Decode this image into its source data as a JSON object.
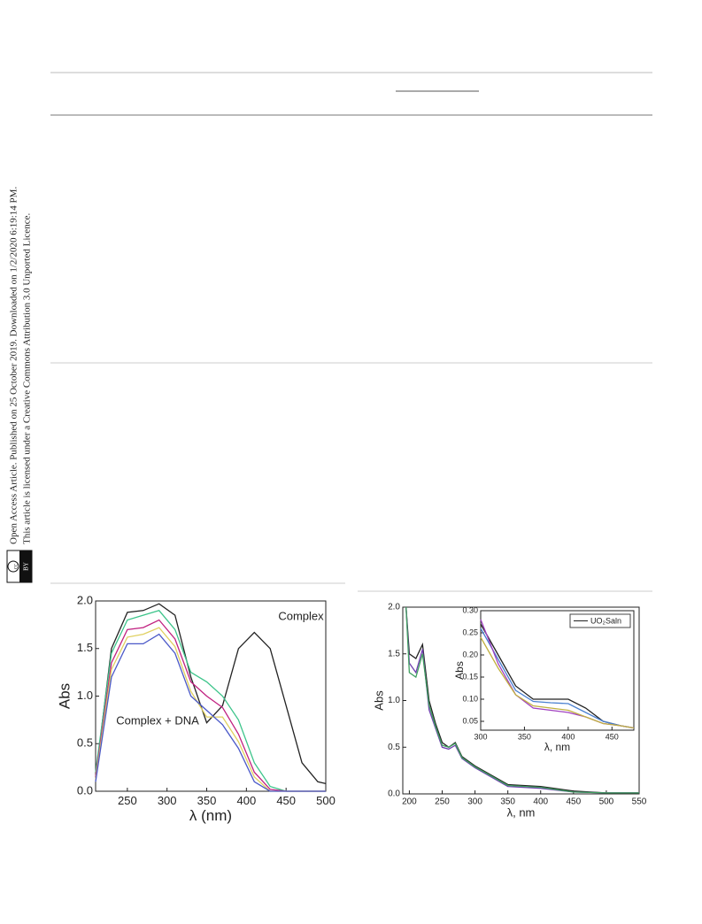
{
  "license": {
    "line1": "Open Access Article. Published on 25 October 2019. Downloaded on 1/2/2020 6:19:14 PM.",
    "line2": "This article is licensed under a Creative Commons Attribution 3.0 Unported Licence.",
    "cc_icon": "cc",
    "badge": "BY"
  },
  "charts": [
    {
      "type": "line",
      "xlabel": "λ (nm)",
      "ylabel": "Abs",
      "xlim": [
        210,
        500
      ],
      "ylim": [
        0,
        2
      ],
      "xticks": [
        250,
        300,
        350,
        400,
        450,
        500
      ],
      "yticks": [
        {
          "value": 0,
          "label": "0.0"
        },
        {
          "value": 0.5,
          "label": "0.5"
        },
        {
          "value": 1,
          "label": "1.0"
        },
        {
          "value": 1.5,
          "label": "1.5"
        },
        {
          "value": 2,
          "label": "2.0"
        }
      ],
      "annotations": [
        "Complex",
        "Complex + DNA"
      ],
      "x": [
        210,
        230,
        250,
        270,
        290,
        310,
        330,
        350,
        370,
        390,
        410,
        430,
        450,
        470,
        490,
        500
      ],
      "series": [
        {
          "color": "#222222",
          "values": [
            0.15,
            1.5,
            1.88,
            1.9,
            1.97,
            1.85,
            1.2,
            0.72,
            0.9,
            1.5,
            1.67,
            1.5,
            0.9,
            0.3,
            0.1,
            0.08
          ]
        },
        {
          "color": "#3cc48a",
          "values": [
            0.2,
            1.45,
            1.8,
            1.85,
            1.9,
            1.7,
            1.25,
            1.15,
            1.0,
            0.75,
            0.3,
            0.05,
            0,
            0,
            0,
            0
          ]
        },
        {
          "color": "#c02080",
          "values": [
            0.15,
            1.35,
            1.7,
            1.72,
            1.8,
            1.6,
            1.15,
            1.0,
            0.88,
            0.6,
            0.2,
            0.02,
            0,
            0,
            0,
            0
          ]
        },
        {
          "color": "#e0d060",
          "values": [
            0.12,
            1.28,
            1.62,
            1.65,
            1.72,
            1.52,
            1.05,
            0.78,
            0.78,
            0.52,
            0.15,
            0,
            0,
            0,
            0,
            0
          ]
        },
        {
          "color": "#4a58c8",
          "values": [
            0.1,
            1.2,
            1.55,
            1.55,
            1.65,
            1.45,
            1.0,
            0.85,
            0.7,
            0.45,
            0.1,
            0,
            0,
            0,
            0,
            0
          ]
        }
      ]
    },
    {
      "type": "line",
      "xlabel": "λ, nm",
      "ylabel": "Abs",
      "xlim": [
        190,
        550
      ],
      "ylim": [
        0,
        2
      ],
      "xticks": [
        200,
        250,
        300,
        350,
        400,
        450,
        500,
        550
      ],
      "yticks": [
        {
          "value": 0,
          "label": "0.0"
        },
        {
          "value": 0.5,
          "label": "0.5"
        },
        {
          "value": 1,
          "label": "1.0"
        },
        {
          "value": 1.5,
          "label": "1.5"
        },
        {
          "value": 2,
          "label": "2.0"
        }
      ],
      "x": [
        195,
        200,
        210,
        220,
        230,
        240,
        250,
        260,
        270,
        280,
        300,
        350,
        400,
        450,
        500,
        550
      ],
      "series": [
        {
          "name": "UO₂Saln",
          "color": "#222222",
          "values": [
            2.0,
            1.5,
            1.45,
            1.6,
            1.0,
            0.75,
            0.55,
            0.5,
            0.55,
            0.4,
            0.3,
            0.1,
            0.08,
            0.03,
            0.01,
            0.01
          ]
        },
        {
          "color": "#7040b0",
          "values": [
            2.0,
            1.4,
            1.3,
            1.55,
            0.9,
            0.7,
            0.5,
            0.48,
            0.52,
            0.38,
            0.28,
            0.08,
            0.06,
            0.02,
            0.01,
            0.01
          ]
        },
        {
          "color": "#40a060",
          "values": [
            2.0,
            1.3,
            1.25,
            1.5,
            0.95,
            0.72,
            0.52,
            0.5,
            0.54,
            0.39,
            0.29,
            0.09,
            0.07,
            0.02,
            0.01,
            0.01
          ]
        }
      ]
    },
    {
      "type": "line",
      "xlabel": "λ, nm",
      "ylabel": "Abs",
      "xlim": [
        300,
        475
      ],
      "ylim": [
        0.03,
        0.3
      ],
      "xticks": [
        300,
        350,
        400,
        450
      ],
      "yticks": [
        0.05,
        {
          "value": 0.1,
          "label": "0.10"
        },
        0.15,
        {
          "value": 0.2,
          "label": "0.20"
        },
        0.25,
        {
          "value": 0.3,
          "label": "0.30"
        }
      ],
      "x": [
        300,
        320,
        340,
        360,
        380,
        400,
        420,
        440,
        460,
        475
      ],
      "series": [
        {
          "name": "UO₂Saln",
          "color": "#222222",
          "values": [
            0.27,
            0.2,
            0.13,
            0.1,
            0.1,
            0.1,
            0.08,
            0.05,
            0.04,
            0.035
          ]
        },
        {
          "color": "#4a80d0",
          "values": [
            0.26,
            0.19,
            0.12,
            0.095,
            0.092,
            0.09,
            0.07,
            0.05,
            0.04,
            0.035
          ]
        },
        {
          "color": "#a040c0",
          "values": [
            0.28,
            0.18,
            0.11,
            0.08,
            0.075,
            0.07,
            0.06,
            0.045,
            0.04,
            0.035
          ]
        },
        {
          "color": "#c0b040",
          "values": [
            0.24,
            0.17,
            0.11,
            0.085,
            0.08,
            0.075,
            0.06,
            0.045,
            0.04,
            0.035
          ]
        }
      ]
    }
  ]
}
